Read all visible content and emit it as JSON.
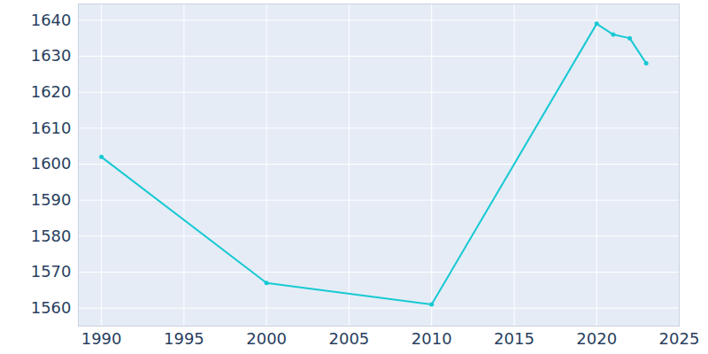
{
  "chart_data": {
    "type": "line",
    "x": [
      1990,
      2000,
      2010,
      2020,
      2021,
      2022,
      2023
    ],
    "values": [
      1602,
      1567,
      1561,
      1639,
      1636,
      1635,
      1628
    ],
    "color": "#17c9d3",
    "marker": "circle",
    "xlim": [
      1988.6,
      2025
    ],
    "ylim": [
      1555,
      1644.5
    ],
    "xticks": [
      1990,
      1995,
      2000,
      2005,
      2010,
      2015,
      2020,
      2025
    ],
    "yticks": [
      1560,
      1570,
      1580,
      1590,
      1600,
      1610,
      1620,
      1630,
      1640
    ],
    "grid": true
  }
}
